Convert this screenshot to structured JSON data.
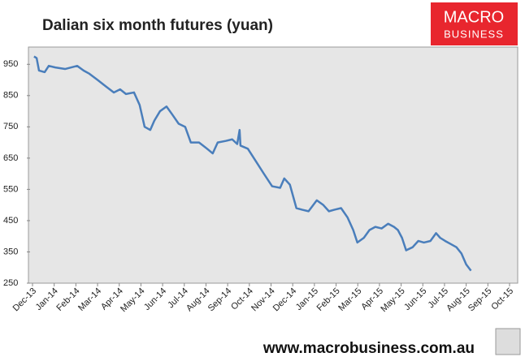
{
  "chart_data": {
    "type": "line",
    "title": "Dalian six month futures (yuan)",
    "x": [
      0.07,
      0.19,
      0.3,
      0.56,
      0.75,
      1.05,
      1.5,
      2.06,
      2.36,
      2.62,
      3.0,
      3.37,
      3.75,
      4.04,
      4.31,
      4.68,
      4.94,
      5.17,
      5.43,
      5.62,
      5.88,
      6.18,
      6.44,
      6.74,
      7.04,
      7.3,
      7.68,
      8.05,
      8.31,
      8.54,
      8.91,
      9.21,
      9.44,
      9.55,
      9.59,
      9.93,
      10.3,
      10.67,
      11.05,
      11.42,
      11.61,
      11.87,
      12.17,
      12.43,
      12.73,
      13.11,
      13.41,
      13.67,
      13.93,
      14.23,
      14.53,
      14.79,
      14.98,
      15.28,
      15.54,
      15.81,
      16.1,
      16.4,
      16.67,
      16.85,
      17.04,
      17.23,
      17.53,
      17.79,
      18.05,
      18.35,
      18.61,
      18.8,
      19.03,
      19.29,
      19.55,
      19.78,
      20.0,
      20.22
    ],
    "series": [
      {
        "name": "Dalian six month futures",
        "color": "#4a7ebb",
        "values": [
          975,
          970,
          930,
          925,
          945,
          940,
          935,
          945,
          930,
          920,
          900,
          880,
          860,
          870,
          855,
          860,
          820,
          750,
          740,
          770,
          800,
          815,
          790,
          760,
          750,
          700,
          700,
          680,
          665,
          700,
          705,
          710,
          695,
          740,
          690,
          680,
          640,
          600,
          560,
          555,
          585,
          565,
          490,
          485,
          480,
          515,
          500,
          480,
          485,
          490,
          460,
          420,
          380,
          395,
          420,
          430,
          425,
          440,
          430,
          420,
          395,
          355,
          365,
          385,
          380,
          385,
          410,
          395,
          385,
          375,
          365,
          345,
          310,
          290
        ]
      }
    ],
    "xlim": [
      0,
      22
    ],
    "xticks": [
      {
        "value": 0,
        "label": "Dec-13"
      },
      {
        "value": 1,
        "label": "Jan-14"
      },
      {
        "value": 2,
        "label": "Feb-14"
      },
      {
        "value": 3,
        "label": "Mar-14"
      },
      {
        "value": 4,
        "label": "Apr-14"
      },
      {
        "value": 5,
        "label": "May-14"
      },
      {
        "value": 6,
        "label": "Jun-14"
      },
      {
        "value": 7,
        "label": "Jul-14"
      },
      {
        "value": 8,
        "label": "Aug-14"
      },
      {
        "value": 9,
        "label": "Sep-14"
      },
      {
        "value": 10,
        "label": "Oct-14"
      },
      {
        "value": 11,
        "label": "Nov-14"
      },
      {
        "value": 12,
        "label": "Dec-14"
      },
      {
        "value": 13,
        "label": "Jan-15"
      },
      {
        "value": 14,
        "label": "Feb-15"
      },
      {
        "value": 15,
        "label": "Mar-15"
      },
      {
        "value": 16,
        "label": "Apr-15"
      },
      {
        "value": 17,
        "label": "May-15"
      },
      {
        "value": 18,
        "label": "Jun-15"
      },
      {
        "value": 19,
        "label": "Jul-15"
      },
      {
        "value": 20,
        "label": "Aug-15"
      },
      {
        "value": 21,
        "label": "Sep-15"
      },
      {
        "value": 22,
        "label": "Oct-15"
      }
    ],
    "ylim": [
      250,
      1000
    ],
    "yticks": [
      250,
      350,
      450,
      550,
      650,
      750,
      850,
      950
    ],
    "grid": false
  },
  "brand": {
    "line1": "MACRO",
    "line2": "BUSINESS"
  },
  "footer": "www.macrobusiness.com.au"
}
